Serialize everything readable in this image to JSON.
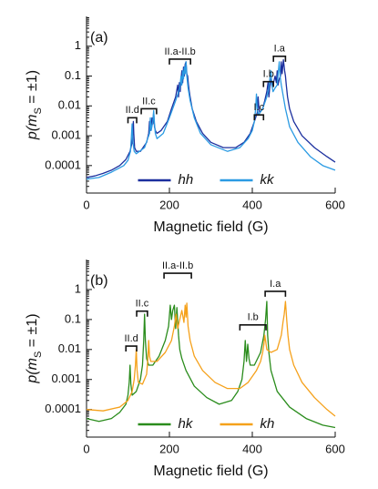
{
  "chart_data": [
    {
      "type": "line",
      "label": "(a)",
      "xlabel": "Magnetic field (G)",
      "ylabel": [
        "p(m",
        "S",
        " = ±1)"
      ],
      "xlim": [
        0,
        600
      ],
      "xticks": [
        0,
        200,
        400,
        600
      ],
      "ylim": [
        1.2e-05,
        10
      ],
      "yticks": [
        0.0001,
        0.001,
        0.01,
        0.1,
        1
      ],
      "log_y": true,
      "legend": "lower center",
      "series": [
        {
          "name": "hh",
          "color": "#1b2f9e",
          "x": [
            0,
            20,
            40,
            60,
            80,
            95,
            105,
            110,
            112,
            113,
            114,
            116,
            120,
            130,
            145,
            150,
            152,
            154,
            156,
            158,
            160,
            162,
            164,
            166,
            170,
            180,
            195,
            205,
            215,
            220,
            222,
            224,
            226,
            228,
            230,
            232,
            234,
            236,
            238,
            240,
            242,
            244,
            246,
            248,
            250,
            255,
            265,
            280,
            300,
            330,
            360,
            380,
            395,
            405,
            412,
            414,
            416,
            418,
            425,
            430,
            435,
            438,
            440,
            442,
            445,
            450,
            455,
            458,
            460,
            462,
            465,
            468,
            470,
            472,
            475,
            478,
            480,
            482,
            485,
            490,
            500,
            520,
            550,
            580,
            600
          ],
          "values": [
            4e-05,
            4.5e-05,
            5.5e-05,
            7e-05,
            0.0001,
            0.00016,
            0.0003,
            0.0006,
            0.0015,
            0.003,
            0.0012,
            0.0004,
            0.0003,
            0.0003,
            0.0006,
            0.0012,
            0.003,
            0.0015,
            0.002,
            0.004,
            0.0025,
            0.006,
            0.002,
            0.0015,
            0.0012,
            0.0015,
            0.003,
            0.008,
            0.02,
            0.05,
            0.02,
            0.06,
            0.03,
            0.08,
            0.15,
            0.06,
            0.2,
            0.1,
            0.25,
            0.3,
            0.12,
            0.1,
            0.05,
            0.03,
            0.02,
            0.008,
            0.003,
            0.0012,
            0.0006,
            0.0004,
            0.0004,
            0.0006,
            0.0012,
            0.003,
            0.006,
            0.02,
            0.008,
            0.006,
            0.008,
            0.015,
            0.03,
            0.06,
            0.02,
            0.04,
            0.08,
            0.05,
            0.1,
            0.06,
            0.15,
            0.05,
            0.08,
            0.1,
            0.3,
            0.12,
            0.35,
            0.15,
            0.1,
            0.05,
            0.02,
            0.008,
            0.003,
            0.001,
            0.0004,
            0.0002,
            0.00013
          ]
        },
        {
          "name": "kk",
          "color": "#2b9be3",
          "x": [
            0,
            30,
            60,
            90,
            100,
            106,
            108,
            110,
            112,
            115,
            120,
            140,
            152,
            154,
            156,
            160,
            162,
            164,
            166,
            170,
            185,
            200,
            215,
            225,
            228,
            230,
            232,
            234,
            236,
            238,
            240,
            242,
            245,
            250,
            260,
            275,
            300,
            340,
            370,
            390,
            400,
            405,
            408,
            410,
            412,
            415,
            425,
            435,
            440,
            443,
            445,
            447,
            450,
            455,
            460,
            463,
            465,
            467,
            470,
            475,
            480,
            490,
            510,
            540,
            570,
            600
          ],
          "values": [
            3.5e-05,
            4e-05,
            6e-05,
            0.0001,
            0.00015,
            0.0003,
            0.0008,
            0.0025,
            0.0006,
            0.0003,
            0.00025,
            0.0004,
            0.0012,
            0.004,
            0.0015,
            0.003,
            0.007,
            0.0025,
            0.0012,
            0.0008,
            0.0012,
            0.004,
            0.015,
            0.04,
            0.1,
            0.05,
            0.15,
            0.08,
            0.2,
            0.12,
            0.3,
            0.1,
            0.04,
            0.015,
            0.004,
            0.0012,
            0.0005,
            0.0003,
            0.0004,
            0.0008,
            0.0015,
            0.003,
            0.008,
            0.025,
            0.008,
            0.005,
            0.008,
            0.02,
            0.04,
            0.1,
            0.15,
            0.05,
            0.03,
            0.04,
            0.05,
            0.15,
            0.3,
            0.1,
            0.05,
            0.02,
            0.008,
            0.002,
            0.0006,
            0.0002,
            0.0001,
            7e-05
          ]
        }
      ],
      "annotations": [
        {
          "text": "II.d",
          "x": [
            100,
            121
          ],
          "y": 0.004
        },
        {
          "text": "II.c",
          "x": [
            132,
            169
          ],
          "y": 0.008
        },
        {
          "text": "II.a-II.b",
          "x": [
            200,
            251
          ],
          "y": 0.37
        },
        {
          "text": "I.c",
          "x": [
            405,
            427
          ],
          "y": 0.005
        },
        {
          "text": "I.b",
          "x": [
            427,
            451
          ],
          "y": 0.065
        },
        {
          "text": "I.a",
          "x": [
            451,
            480
          ],
          "y": 0.46
        }
      ]
    },
    {
      "type": "line",
      "label": "(b)",
      "xlabel": "Magnetic field (G)",
      "ylabel": [
        "p(m",
        "S",
        " = ±1)"
      ],
      "xlim": [
        0,
        600
      ],
      "xticks": [
        0,
        200,
        400,
        600
      ],
      "ylim": [
        1.2e-05,
        10
      ],
      "yticks": [
        0.0001,
        0.001,
        0.01,
        0.1,
        1
      ],
      "log_y": true,
      "legend": "lower center",
      "series": [
        {
          "name": "hk",
          "color": "#2a8c1c",
          "x": [
            0,
            30,
            60,
            80,
            95,
            100,
            103,
            105,
            107,
            110,
            120,
            130,
            135,
            138,
            140,
            142,
            145,
            150,
            160,
            175,
            190,
            198,
            202,
            205,
            208,
            212,
            215,
            218,
            222,
            225,
            230,
            240,
            260,
            290,
            320,
            350,
            365,
            375,
            380,
            383,
            386,
            389,
            392,
            395,
            405,
            420,
            428,
            432,
            435,
            437,
            440,
            445,
            460,
            490,
            530,
            570,
            600
          ],
          "values": [
            5e-05,
            4e-05,
            5e-05,
            8e-05,
            0.00015,
            0.0003,
            0.0008,
            0.003,
            0.0007,
            0.0003,
            0.0004,
            0.001,
            0.003,
            0.02,
            0.15,
            0.02,
            0.005,
            0.003,
            0.003,
            0.006,
            0.02,
            0.06,
            0.3,
            0.1,
            0.2,
            0.3,
            0.05,
            0.25,
            0.03,
            0.01,
            0.005,
            0.002,
            0.0006,
            0.00025,
            0.00015,
            0.0002,
            0.0004,
            0.001,
            0.004,
            0.02,
            0.004,
            0.015,
            0.005,
            0.003,
            0.003,
            0.008,
            0.03,
            0.1,
            0.4,
            0.03,
            0.008,
            0.002,
            0.0004,
            0.00012,
            5e-05,
            3e-05,
            2.5e-05
          ]
        },
        {
          "name": "kh",
          "color": "#f5a11b",
          "x": [
            0,
            40,
            80,
            100,
            110,
            115,
            118,
            120,
            122,
            125,
            135,
            145,
            148,
            150,
            152,
            155,
            170,
            190,
            205,
            212,
            216,
            220,
            225,
            230,
            235,
            238,
            240,
            242,
            245,
            250,
            260,
            280,
            310,
            340,
            370,
            390,
            410,
            420,
            425,
            428,
            430,
            432,
            435,
            445,
            460,
            470,
            474,
            477,
            480,
            483,
            486,
            490,
            500,
            520,
            550,
            580,
            600
          ],
          "values": [
            0.0001,
            9e-05,
            0.00012,
            0.0002,
            0.0004,
            0.001,
            0.003,
            0.01,
            0.002,
            0.0008,
            0.0007,
            0.0015,
            0.005,
            0.02,
            0.006,
            0.004,
            0.004,
            0.008,
            0.02,
            0.06,
            0.15,
            0.05,
            0.1,
            0.2,
            0.08,
            0.3,
            0.12,
            0.35,
            0.06,
            0.02,
            0.006,
            0.002,
            0.0008,
            0.0005,
            0.0005,
            0.0008,
            0.002,
            0.004,
            0.008,
            0.015,
            0.03,
            0.02,
            0.01,
            0.008,
            0.01,
            0.03,
            0.08,
            0.15,
            0.4,
            0.1,
            0.03,
            0.01,
            0.003,
            0.0008,
            0.00025,
            0.0001,
            6e-05
          ]
        }
      ],
      "annotations": [
        {
          "text": "II.d",
          "x": [
            95,
            121
          ],
          "y": 0.013
        },
        {
          "text": "II.c",
          "x": [
            121,
            147
          ],
          "y": 0.19
        },
        {
          "text": "II.a-II.b",
          "x": [
            187,
            253
          ],
          "y": 3.5
        },
        {
          "text": "I.b",
          "x": [
            370,
            433
          ],
          "y": 0.066
        },
        {
          "text": "I.a",
          "x": [
            431,
            480
          ],
          "y": 0.87
        }
      ]
    }
  ]
}
